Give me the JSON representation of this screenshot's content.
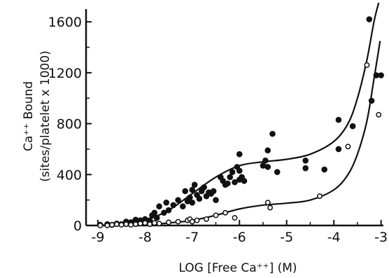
{
  "chart_data": {
    "type": "scatter",
    "title": "",
    "xlabel": "LOG [Free Ca⁺⁺] (M)",
    "ylabel_line1": "Ca⁺⁺ Bound",
    "ylabel_line2": "(sites/platelet x 1000)",
    "xlim": [
      -9.25,
      -2.95
    ],
    "ylim": [
      0,
      1700
    ],
    "xticks": [
      -9,
      -8,
      -7,
      -6,
      -5,
      -4,
      -3
    ],
    "xtick_labels": [
      "-9",
      "-8",
      "-7",
      "-6",
      "-5",
      "-4",
      "-3"
    ],
    "yticks": [
      0,
      400,
      800,
      1200,
      1600
    ],
    "ytick_labels": [
      "0",
      "400",
      "800",
      "1200",
      "1600"
    ],
    "grid": false,
    "series": [
      {
        "marker": "filled-circle",
        "color": "#111111",
        "points": [
          [
            -8.95,
            5
          ],
          [
            -8.8,
            10
          ],
          [
            -8.7,
            5
          ],
          [
            -8.6,
            15
          ],
          [
            -8.5,
            10
          ],
          [
            -8.4,
            30
          ],
          [
            -8.3,
            25
          ],
          [
            -8.2,
            45
          ],
          [
            -8.1,
            40
          ],
          [
            -8.0,
            50
          ],
          [
            -7.9,
            40
          ],
          [
            -7.85,
            80
          ],
          [
            -7.8,
            100
          ],
          [
            -7.75,
            60
          ],
          [
            -7.7,
            150
          ],
          [
            -7.6,
            100
          ],
          [
            -7.55,
            180
          ],
          [
            -7.5,
            120
          ],
          [
            -7.4,
            160
          ],
          [
            -7.3,
            200
          ],
          [
            -7.2,
            150
          ],
          [
            -7.15,
            270
          ],
          [
            -7.1,
            190
          ],
          [
            -7.05,
            220
          ],
          [
            -7.0,
            280
          ],
          [
            -7.0,
            180
          ],
          [
            -6.95,
            320
          ],
          [
            -6.9,
            240
          ],
          [
            -6.85,
            210
          ],
          [
            -6.8,
            270
          ],
          [
            -6.75,
            300
          ],
          [
            -6.7,
            230
          ],
          [
            -6.65,
            260
          ],
          [
            -6.6,
            250
          ],
          [
            -6.55,
            270
          ],
          [
            -6.5,
            200
          ],
          [
            -6.4,
            380
          ],
          [
            -6.35,
            350
          ],
          [
            -6.3,
            320
          ],
          [
            -6.25,
            330
          ],
          [
            -6.2,
            380
          ],
          [
            -6.15,
            420
          ],
          [
            -6.1,
            340
          ],
          [
            -6.05,
            460
          ],
          [
            -6.0,
            430
          ],
          [
            -6.0,
            560
          ],
          [
            -6.0,
            360
          ],
          [
            -5.95,
            380
          ],
          [
            -5.9,
            350
          ],
          [
            -5.5,
            470
          ],
          [
            -5.45,
            510
          ],
          [
            -5.4,
            460
          ],
          [
            -5.4,
            590
          ],
          [
            -5.3,
            720
          ],
          [
            -5.2,
            420
          ],
          [
            -4.6,
            510
          ],
          [
            -4.6,
            450
          ],
          [
            -4.2,
            440
          ],
          [
            -3.9,
            830
          ],
          [
            -3.9,
            600
          ],
          [
            -3.6,
            780
          ],
          [
            -3.25,
            1620
          ],
          [
            -3.2,
            980
          ],
          [
            -3.1,
            1180
          ],
          [
            -3.0,
            1180
          ]
        ]
      },
      {
        "marker": "open-circle",
        "color": "#111111",
        "points": [
          [
            -8.95,
            0
          ],
          [
            -8.8,
            0
          ],
          [
            -8.7,
            5
          ],
          [
            -8.6,
            10
          ],
          [
            -8.5,
            5
          ],
          [
            -8.4,
            10
          ],
          [
            -8.3,
            5
          ],
          [
            -8.2,
            10
          ],
          [
            -8.1,
            15
          ],
          [
            -8.0,
            20
          ],
          [
            -7.9,
            10
          ],
          [
            -7.8,
            20
          ],
          [
            -7.7,
            15
          ],
          [
            -7.5,
            25
          ],
          [
            -7.3,
            30
          ],
          [
            -7.1,
            40
          ],
          [
            -7.05,
            50
          ],
          [
            -7.0,
            30
          ],
          [
            -6.9,
            40
          ],
          [
            -6.7,
            50
          ],
          [
            -6.5,
            80
          ],
          [
            -6.3,
            100
          ],
          [
            -6.1,
            60
          ],
          [
            -5.4,
            180
          ],
          [
            -5.35,
            140
          ],
          [
            -4.3,
            230
          ],
          [
            -3.7,
            620
          ],
          [
            -3.3,
            1260
          ],
          [
            -3.05,
            870
          ]
        ]
      }
    ],
    "curves": [
      {
        "color": "#111111",
        "points": [
          [
            -9.0,
            0
          ],
          [
            -8.5,
            10
          ],
          [
            -8.0,
            40
          ],
          [
            -7.5,
            120
          ],
          [
            -7.0,
            250
          ],
          [
            -6.5,
            380
          ],
          [
            -6.0,
            470
          ],
          [
            -5.5,
            500
          ],
          [
            -5.0,
            520
          ],
          [
            -4.5,
            560
          ],
          [
            -4.0,
            660
          ],
          [
            -3.7,
            800
          ],
          [
            -3.5,
            1000
          ],
          [
            -3.3,
            1300
          ],
          [
            -3.15,
            1600
          ],
          [
            -3.05,
            1750
          ]
        ]
      },
      {
        "color": "#111111",
        "points": [
          [
            -9.0,
            0
          ],
          [
            -8.0,
            5
          ],
          [
            -7.5,
            20
          ],
          [
            -7.0,
            40
          ],
          [
            -6.5,
            80
          ],
          [
            -6.0,
            130
          ],
          [
            -5.5,
            160
          ],
          [
            -5.0,
            175
          ],
          [
            -4.5,
            200
          ],
          [
            -4.0,
            280
          ],
          [
            -3.7,
            400
          ],
          [
            -3.5,
            560
          ],
          [
            -3.3,
            820
          ],
          [
            -3.15,
            1150
          ],
          [
            -3.02,
            1450
          ]
        ]
      }
    ]
  }
}
